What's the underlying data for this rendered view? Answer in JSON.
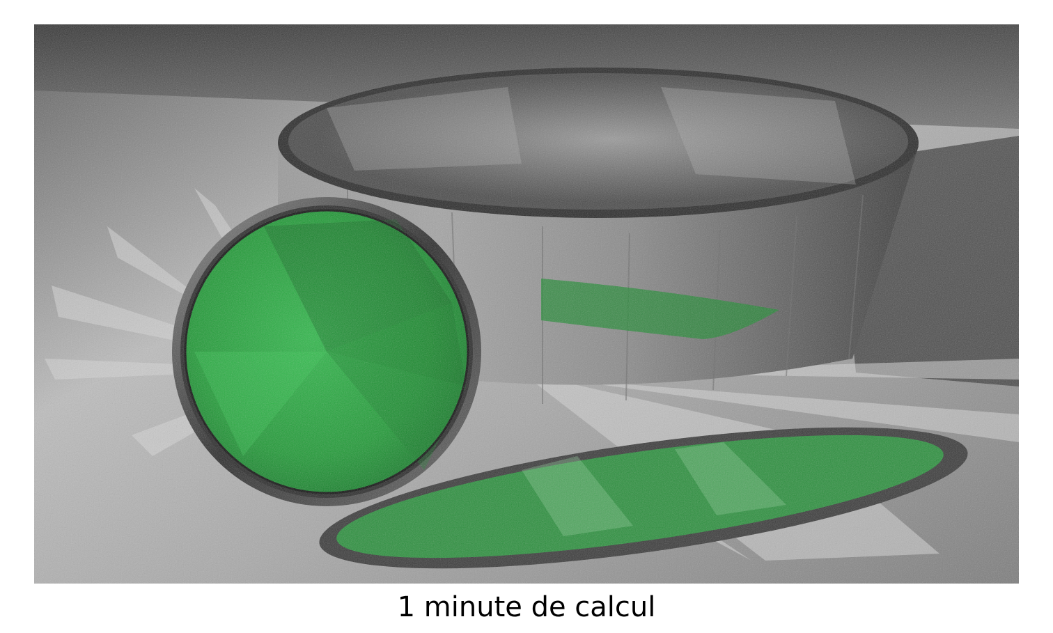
{
  "caption": "1 minute de calcul",
  "scene": {
    "description_icon": "rendered-scene-image",
    "colors": {
      "glass_green": "#1fa83a",
      "floor_light": "#cfcfcf",
      "floor_dark": "#3a3a3a",
      "metal_ring": "#4a4a4a"
    }
  }
}
